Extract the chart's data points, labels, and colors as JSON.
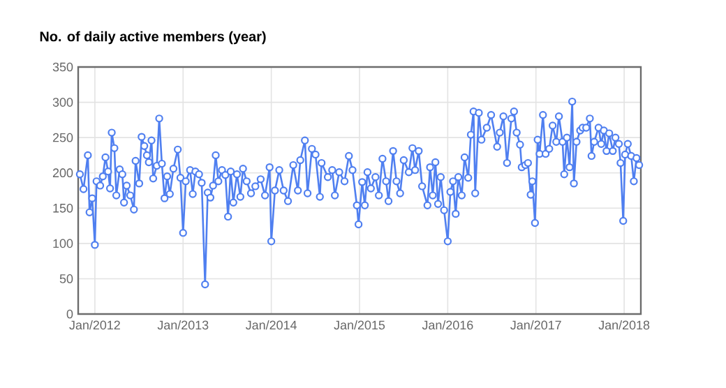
{
  "chart_data": {
    "type": "line",
    "title": "No. of daily active members (year)",
    "x": [
      "2011-10-31",
      "2011-11-15",
      "2011-12-03",
      "2011-12-10",
      "2011-12-21",
      "2012-01-01",
      "2012-01-08",
      "2012-01-23",
      "2012-02-03",
      "2012-02-14",
      "2012-02-25",
      "2012-03-04",
      "2012-03-11",
      "2012-03-22",
      "2012-03-30",
      "2012-04-13",
      "2012-04-24",
      "2012-05-01",
      "2012-05-12",
      "2012-05-27",
      "2012-06-11",
      "2012-06-18",
      "2012-07-03",
      "2012-07-13",
      "2012-07-24",
      "2012-08-04",
      "2012-08-12",
      "2012-08-23",
      "2012-08-30",
      "2012-09-14",
      "2012-09-24",
      "2012-10-05",
      "2012-10-16",
      "2012-10-27",
      "2012-11-07",
      "2012-11-22",
      "2012-12-10",
      "2012-12-21",
      "2013-01-01",
      "2013-01-12",
      "2013-01-30",
      "2013-02-10",
      "2013-02-21",
      "2013-03-08",
      "2013-03-19",
      "2013-04-02",
      "2013-04-13",
      "2013-04-24",
      "2013-05-05",
      "2013-05-16",
      "2013-05-27",
      "2013-06-11",
      "2013-06-25",
      "2013-07-06",
      "2013-07-17",
      "2013-07-28",
      "2013-08-12",
      "2013-08-26",
      "2013-09-06",
      "2013-09-21",
      "2013-10-09",
      "2013-10-27",
      "2013-11-18",
      "2013-12-06",
      "2013-12-25",
      "2014-01-01",
      "2014-01-16",
      "2014-02-03",
      "2014-02-21",
      "2014-03-11",
      "2014-04-02",
      "2014-04-21",
      "2014-05-01",
      "2014-05-20",
      "2014-05-31",
      "2014-06-18",
      "2014-07-03",
      "2014-07-21",
      "2014-07-28",
      "2014-08-23",
      "2014-09-10",
      "2014-09-21",
      "2014-10-09",
      "2014-10-31",
      "2014-11-18",
      "2014-12-03",
      "2014-12-21",
      "2014-12-28",
      "2015-01-12",
      "2015-01-23",
      "2015-02-03",
      "2015-02-17",
      "2015-03-08",
      "2015-03-22",
      "2015-04-06",
      "2015-04-21",
      "2015-05-01",
      "2015-05-20",
      "2015-06-03",
      "2015-06-18",
      "2015-07-03",
      "2015-07-24",
      "2015-08-08",
      "2015-08-19",
      "2015-09-03",
      "2015-09-17",
      "2015-10-09",
      "2015-10-20",
      "2015-10-31",
      "2015-11-11",
      "2015-11-22",
      "2015-12-03",
      "2015-12-17",
      "2016-01-01",
      "2016-01-12",
      "2016-01-23",
      "2016-02-03",
      "2016-02-14",
      "2016-02-28",
      "2016-03-11",
      "2016-03-26",
      "2016-04-06",
      "2016-04-17",
      "2016-04-24",
      "2016-05-09",
      "2016-05-20",
      "2016-06-11",
      "2016-06-29",
      "2016-07-24",
      "2016-08-04",
      "2016-08-19",
      "2016-09-03",
      "2016-09-21",
      "2016-10-02",
      "2016-10-13",
      "2016-10-27",
      "2016-11-03",
      "2016-11-18",
      "2016-11-29",
      "2016-12-10",
      "2016-12-17",
      "2016-12-28",
      "2017-01-08",
      "2017-01-16",
      "2017-01-30",
      "2017-02-10",
      "2017-02-25",
      "2017-03-11",
      "2017-03-26",
      "2017-04-06",
      "2017-04-21",
      "2017-04-28",
      "2017-05-09",
      "2017-05-20",
      "2017-05-31",
      "2017-06-07",
      "2017-06-18",
      "2017-07-03",
      "2017-07-13",
      "2017-07-28",
      "2017-08-12",
      "2017-08-19",
      "2017-08-30",
      "2017-09-17",
      "2017-09-28",
      "2017-10-09",
      "2017-10-20",
      "2017-10-31",
      "2017-11-15",
      "2017-11-26",
      "2017-12-10",
      "2017-12-17",
      "2017-12-28",
      "2018-01-05",
      "2018-01-16",
      "2018-01-30",
      "2018-02-10",
      "2018-02-21",
      "2018-03-04"
    ],
    "series": [
      {
        "color": "#4f7ff0",
        "values": [
          198,
          177,
          225,
          144,
          164,
          98,
          188,
          182,
          195,
          222,
          202,
          178,
          257,
          235,
          168,
          205,
          198,
          158,
          182,
          168,
          148,
          217,
          185,
          251,
          238,
          225,
          215,
          246,
          192,
          210,
          277,
          213,
          164,
          195,
          170,
          206,
          233,
          193,
          115,
          188,
          204,
          170,
          202,
          198,
          186,
          42,
          172,
          165,
          182,
          225,
          188,
          204,
          197,
          138,
          202,
          158,
          198,
          166,
          206,
          188,
          171,
          181,
          191,
          168,
          208,
          103,
          175,
          204,
          175,
          160,
          211,
          175,
          218,
          246,
          171,
          234,
          226,
          166,
          214,
          194,
          204,
          168,
          201,
          188,
          224,
          204,
          154,
          127,
          187,
          154,
          201,
          178,
          194,
          168,
          220,
          188,
          160,
          231,
          188,
          171,
          218,
          201,
          235,
          204,
          231,
          181,
          154,
          208,
          168,
          215,
          156,
          194,
          147,
          103,
          173,
          188,
          142,
          194,
          168,
          222,
          193,
          254,
          287,
          171,
          285,
          247,
          264,
          282,
          237,
          257,
          280,
          214,
          277,
          287,
          257,
          240,
          208,
          211,
          214,
          169,
          188,
          129,
          247,
          227,
          282,
          227,
          234,
          267,
          244,
          280,
          244,
          198,
          250,
          208,
          301,
          185,
          244,
          260,
          264,
          264,
          277,
          224,
          244,
          264,
          241,
          260,
          231,
          256,
          231,
          250,
          241,
          214,
          132,
          226,
          241,
          224,
          188,
          221,
          211
        ]
      }
    ],
    "xlim": [
      "2011-10-24",
      "2018-03-11"
    ],
    "xticks": [
      {
        "value": "2012-01",
        "label": "Jan/2012"
      },
      {
        "value": "2013-01",
        "label": "Jan/2013"
      },
      {
        "value": "2014-01",
        "label": "Jan/2014"
      },
      {
        "value": "2015-01",
        "label": "Jan/2015"
      },
      {
        "value": "2016-01",
        "label": "Jan/2016"
      },
      {
        "value": "2017-01",
        "label": "Jan/2017"
      },
      {
        "value": "2018-01",
        "label": "Jan/2018"
      }
    ],
    "ylim": [
      0,
      350
    ],
    "yticks": [
      0,
      50,
      100,
      150,
      200,
      250,
      300,
      350
    ],
    "grid": true,
    "marker": "circle",
    "line_style": "solid"
  }
}
